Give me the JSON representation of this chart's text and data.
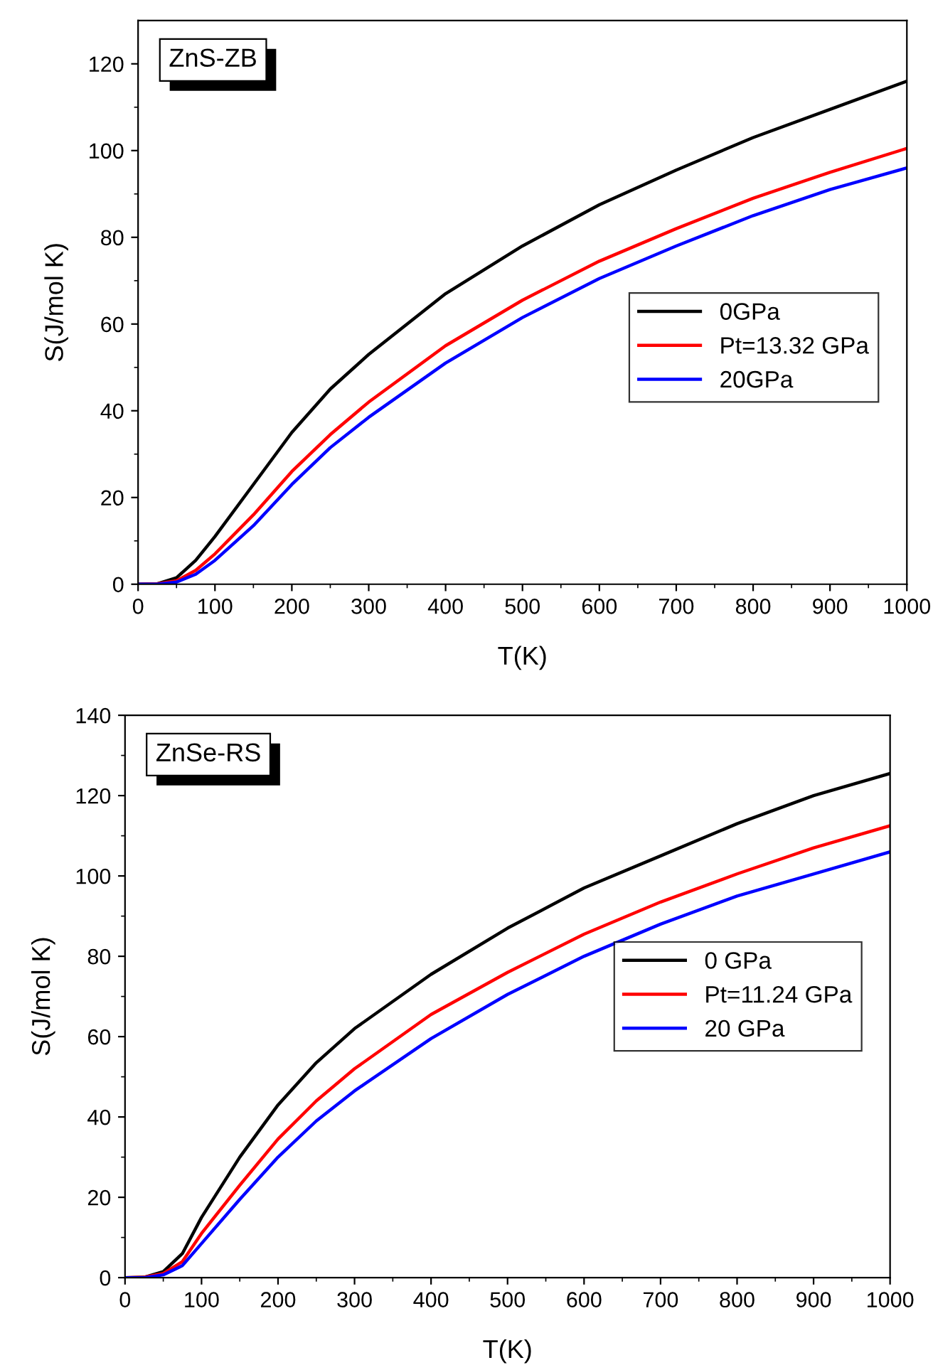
{
  "chart_data": [
    {
      "type": "line",
      "xlabel": "T(K)",
      "ylabel": "S(J/mol K)",
      "annotations": [
        "ZnS-ZB"
      ],
      "x": [
        0,
        25,
        50,
        75,
        100,
        150,
        200,
        250,
        300,
        400,
        500,
        600,
        700,
        800,
        900,
        1000
      ],
      "series": [
        {
          "name": "0GPa",
          "color": "#000000",
          "values": [
            0,
            0.1,
            1.5,
            5.5,
            11,
            23,
            35,
            45,
            53,
            67,
            78,
            87.5,
            95.5,
            103,
            109.5,
            116
          ]
        },
        {
          "name": "Pt=13.32 GPa",
          "color": "#ff0000",
          "values": [
            0,
            0.1,
            0.8,
            3.2,
            7,
            16,
            26,
            34.5,
            42,
            55,
            65.5,
            74.5,
            82,
            89,
            95,
            100.5
          ]
        },
        {
          "name": "20GPa",
          "color": "#0000ff",
          "values": [
            0,
            0,
            0.5,
            2.3,
            5.5,
            13.5,
            23,
            31.5,
            38.5,
            51,
            61.5,
            70.5,
            78,
            85,
            91,
            96
          ]
        }
      ],
      "xlim": [
        0,
        1000
      ],
      "xticks": [
        0,
        100,
        200,
        300,
        400,
        500,
        600,
        700,
        800,
        900,
        1000
      ],
      "ylim": [
        0,
        130
      ],
      "yticks": [
        0,
        20,
        40,
        60,
        80,
        100,
        120
      ],
      "grid": false,
      "legend": "right",
      "marker": "none",
      "line_style": "solid"
    },
    {
      "type": "line",
      "xlabel": "T(K)",
      "ylabel": "S(J/mol K)",
      "annotations": [
        "ZnSe-RS"
      ],
      "x": [
        0,
        25,
        50,
        75,
        100,
        150,
        200,
        250,
        300,
        400,
        500,
        600,
        700,
        800,
        900,
        1000
      ],
      "series": [
        {
          "name": "0 GPa",
          "color": "#000000",
          "values": [
            0,
            0.1,
            1.5,
            6,
            15,
            30,
            43,
            53.5,
            62,
            75.5,
            87,
            97,
            105,
            113,
            120,
            125.5
          ]
        },
        {
          "name": "Pt=11.24 GPa",
          "color": "#ff0000",
          "values": [
            0,
            0.1,
            1,
            4,
            11,
            23,
            34.5,
            44,
            52,
            65.5,
            76,
            85.5,
            93.5,
            100.5,
            107,
            112.5
          ]
        },
        {
          "name": "20 GPa",
          "color": "#0000ff",
          "values": [
            0,
            0,
            0.7,
            3,
            8.5,
            19.5,
            30,
            39,
            46.5,
            59.5,
            70.5,
            80,
            88,
            95,
            100.5,
            106
          ]
        }
      ],
      "xlim": [
        0,
        1000
      ],
      "xticks": [
        0,
        100,
        200,
        300,
        400,
        500,
        600,
        700,
        800,
        900,
        1000
      ],
      "ylim": [
        0,
        140
      ],
      "yticks": [
        0,
        20,
        40,
        60,
        80,
        100,
        120,
        140
      ],
      "grid": false,
      "legend": "right",
      "marker": "none",
      "line_style": "solid"
    }
  ]
}
